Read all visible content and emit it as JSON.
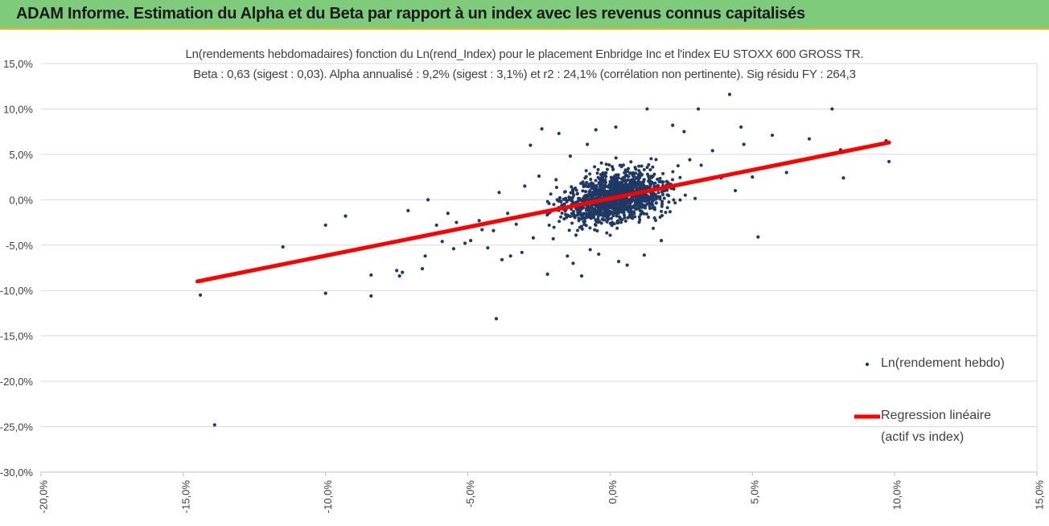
{
  "header": {
    "title": "ADAM Informe. Estimation du Alpha et du Beta par rapport à un index avec les revenus connus capitalisés"
  },
  "chart_data": {
    "type": "scatter",
    "title_line1": "Ln(rendements hebdomadaires) fonction du Ln(rend_Index) pour le placement Enbridge Inc et l'index EU STOXX 600 GROSS TR.",
    "title_line2": "Beta : 0,63 (sigest : 0,03).  Alpha annualisé : 9,2% (sigest : 3,1%) et r2 : 24,1% (corrélation non pertinente). Sig résidu FY : 264,3",
    "xlim": [
      -20,
      15
    ],
    "ylim": [
      -30,
      15
    ],
    "x_ticks": [
      "-20,0%",
      "-15,0%",
      "-10,0%",
      "-5,0%",
      "0,0%",
      "5,0%",
      "10,0%",
      "15,0%"
    ],
    "y_ticks": [
      "15,0%",
      "10,0%",
      "5,0%",
      "0,0%",
      "-5,0%",
      "-10,0%",
      "-15,0%",
      "-20,0%",
      "-25,0%",
      "-30,0%"
    ],
    "grid": "horizontal",
    "colors": {
      "points": "#203864",
      "regression": "#ff0000",
      "header_bg": "#7fcb7c",
      "header_border": "#f3b21b"
    },
    "series": [
      {
        "name": "Ln(rendement hebdo)",
        "kind": "scatter",
        "points": [
          [
            -14.4,
            -10.5
          ],
          [
            -13.9,
            -24.8
          ],
          [
            -11.5,
            -5.2
          ],
          [
            -10.0,
            -2.8
          ],
          [
            -10.0,
            -10.3
          ],
          [
            -9.3,
            -1.8
          ],
          [
            -8.4,
            -8.3
          ],
          [
            -8.4,
            -10.6
          ],
          [
            -7.5,
            -7.8
          ],
          [
            -7.4,
            -8.4
          ],
          [
            -7.3,
            -8.0
          ],
          [
            -7.1,
            -1.2
          ],
          [
            -6.6,
            -7.6
          ],
          [
            -6.5,
            -6.2
          ],
          [
            -6.4,
            0.0
          ],
          [
            -6.1,
            -2.8
          ],
          [
            -5.9,
            -4.6
          ],
          [
            -5.7,
            -1.5
          ],
          [
            -5.5,
            -5.4
          ],
          [
            -5.4,
            -2.5
          ],
          [
            -5.1,
            -4.8
          ],
          [
            -4.9,
            -4.5
          ],
          [
            -4.6,
            -2.3
          ],
          [
            -4.5,
            -3.3
          ],
          [
            -4.3,
            -5.3
          ],
          [
            -4.1,
            -3.4
          ],
          [
            -4.0,
            -13.1
          ],
          [
            -3.8,
            -6.6
          ],
          [
            -3.6,
            -1.5
          ],
          [
            -3.5,
            -6.2
          ],
          [
            -3.3,
            -2.7
          ],
          [
            -3.1,
            -5.8
          ],
          [
            -2.8,
            6.0
          ],
          [
            -2.7,
            -4.2
          ],
          [
            -2.5,
            2.6
          ],
          [
            -2.4,
            7.8
          ],
          [
            -2.2,
            -8.2
          ],
          [
            -2.0,
            -4.3
          ],
          [
            -1.8,
            7.3
          ],
          [
            -1.5,
            -6.2
          ],
          [
            -1.4,
            4.8
          ],
          [
            -1.3,
            -7.0
          ],
          [
            -1.2,
            -3.9
          ],
          [
            -1.0,
            -8.4
          ],
          [
            -0.8,
            6.1
          ],
          [
            -0.7,
            -5.5
          ],
          [
            -0.5,
            7.7
          ],
          [
            -0.4,
            -6.0
          ],
          [
            0.2,
            8.0
          ],
          [
            0.3,
            -6.8
          ],
          [
            0.6,
            -7.2
          ],
          [
            1.2,
            -6.1
          ],
          [
            1.3,
            10.0
          ],
          [
            1.8,
            -4.5
          ],
          [
            2.2,
            8.2
          ],
          [
            2.6,
            7.5
          ],
          [
            3.1,
            10.0
          ],
          [
            3.6,
            5.4
          ],
          [
            4.2,
            11.6
          ],
          [
            4.6,
            8.0
          ],
          [
            5.0,
            2.5
          ],
          [
            5.2,
            -4.1
          ],
          [
            5.7,
            7.1
          ],
          [
            6.2,
            3.0
          ],
          [
            7.0,
            6.7
          ],
          [
            7.8,
            10.0
          ],
          [
            8.1,
            5.5
          ],
          [
            8.2,
            2.4
          ],
          [
            9.7,
            6.5
          ],
          [
            9.8,
            4.2
          ],
          [
            4.7,
            6.1
          ],
          [
            3.2,
            3.8
          ],
          [
            3.9,
            2.4
          ],
          [
            4.4,
            1.0
          ],
          [
            2.8,
            4.4
          ],
          [
            -1.9,
            2.2
          ],
          [
            -3.0,
            1.5
          ],
          [
            -3.9,
            0.8
          ]
        ]
      },
      {
        "name": "Regression linéaire (actif vs index)",
        "kind": "line",
        "points": [
          [
            -14.5,
            -9.0
          ],
          [
            9.8,
            6.3
          ]
        ]
      }
    ],
    "legend": {
      "placement": "right",
      "items": [
        {
          "label": "Ln(rendement hebdo)"
        },
        {
          "label_line1": "Regression linéaire",
          "label_line2": "(actif vs index)"
        }
      ]
    }
  }
}
